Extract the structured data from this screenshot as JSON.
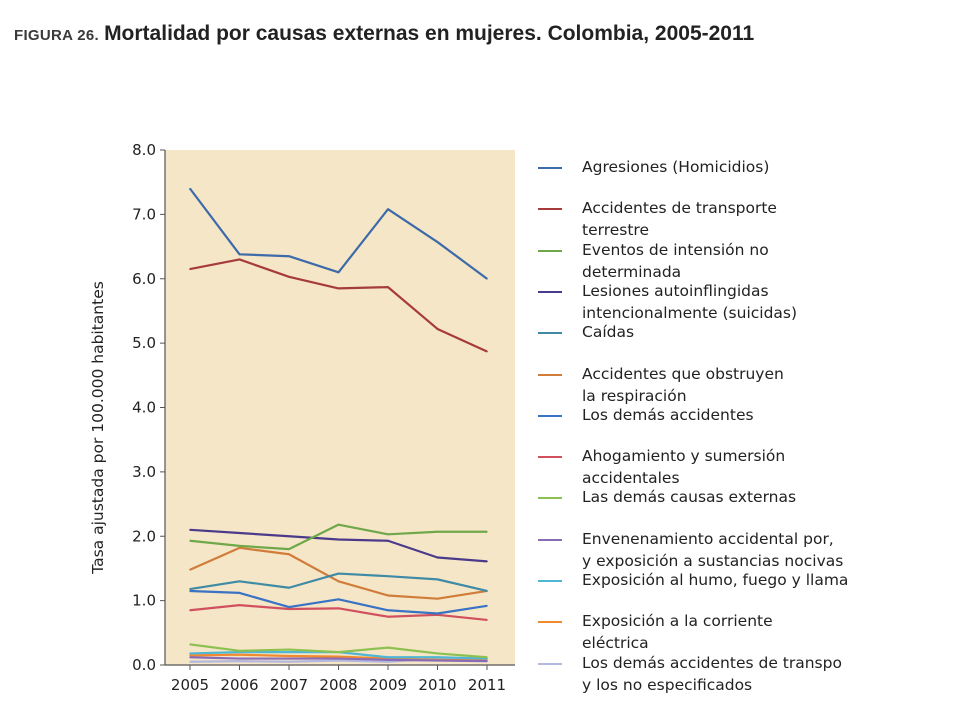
{
  "figure": {
    "label": "FIGURA 26.",
    "title": "Mortalidad por causas externas en mujeres. Colombia, 2005-2011"
  },
  "colors": {
    "plot_background": "#f6e6c8",
    "axis": "#555555"
  },
  "chart_data": {
    "type": "line",
    "title": "Mortalidad por causas externas en mujeres. Colombia, 2005-2011",
    "xlabel": "",
    "ylabel": "Tasa ajustada por 100.000 habitantes",
    "categories": [
      "2005",
      "2006",
      "2007",
      "2008",
      "2009",
      "2010",
      "2011"
    ],
    "ylim": [
      0,
      8
    ],
    "yticks": [
      "0.0",
      "1.0",
      "2.0",
      "3.0",
      "4.0",
      "5.0",
      "6.0",
      "7.0",
      "8.0"
    ],
    "grid": false,
    "legend_position": "right",
    "series": [
      {
        "name": "Agresiones (Homicidios)",
        "color": "#3d6aa8",
        "values": [
          7.4,
          6.38,
          6.35,
          6.1,
          7.08,
          6.57,
          6.0
        ]
      },
      {
        "name": "Accidentes de transporte terrestre",
        "color": "#a63b3b",
        "values": [
          6.15,
          6.3,
          6.03,
          5.85,
          5.87,
          5.22,
          4.87
        ]
      },
      {
        "name": "Eventos de intensión no determinada",
        "color": "#6fa84a",
        "values": [
          1.93,
          1.85,
          1.8,
          2.18,
          2.03,
          2.07,
          2.07
        ]
      },
      {
        "name": "Lesiones autoinflingidas intencionalmente (suicidas)",
        "color": "#4a3a8a",
        "values": [
          2.1,
          2.05,
          2.0,
          1.95,
          1.93,
          1.67,
          1.61
        ]
      },
      {
        "name": "Caídas",
        "color": "#3f8ba5",
        "values": [
          1.18,
          1.3,
          1.2,
          1.42,
          1.38,
          1.33,
          1.15
        ]
      },
      {
        "name": "Accidentes que obstruyen la respiración",
        "color": "#d07c3a",
        "values": [
          1.48,
          1.82,
          1.72,
          1.3,
          1.08,
          1.03,
          1.15
        ]
      },
      {
        "name": "Los demás accidentes",
        "color": "#3a72c4",
        "values": [
          1.15,
          1.12,
          0.9,
          1.02,
          0.85,
          0.8,
          0.92
        ]
      },
      {
        "name": "Ahogamiento y sumersión accidentales",
        "color": "#d0505e",
        "values": [
          0.85,
          0.93,
          0.87,
          0.88,
          0.75,
          0.78,
          0.7
        ]
      },
      {
        "name": "Las demás causas externas",
        "color": "#8cc152",
        "values": [
          0.32,
          0.22,
          0.24,
          0.2,
          0.27,
          0.18,
          0.12
        ]
      },
      {
        "name": "Envenenamiento accidental por, y exposición a sustancias nocivas",
        "color": "#8a6bb5",
        "values": [
          0.12,
          0.1,
          0.1,
          0.1,
          0.08,
          0.07,
          0.06
        ]
      },
      {
        "name": "Exposición al humo, fuego y llama",
        "color": "#4fb6d6",
        "values": [
          0.18,
          0.2,
          0.2,
          0.2,
          0.12,
          0.12,
          0.1
        ]
      },
      {
        "name": "Exposición a la corriente eléctrica",
        "color": "#f08a2c",
        "values": [
          0.15,
          0.16,
          0.14,
          0.13,
          0.1,
          0.08,
          0.07
        ]
      },
      {
        "name": "Los demás accidentes de transpo y los no especificados",
        "color": "#b3b8e0",
        "values": [
          0.05,
          0.06,
          0.05,
          0.07,
          0.05,
          0.1,
          0.08
        ]
      }
    ]
  },
  "legend": [
    {
      "lines": [
        "Agresiones (Homicidios)"
      ]
    },
    {
      "lines": [
        "Accidentes de transporte",
        "terrestre"
      ]
    },
    {
      "lines": [
        "Eventos de intensión no",
        "determinada"
      ]
    },
    {
      "lines": [
        "Lesiones autoinflingidas",
        "intencionalmente (suicidas)"
      ]
    },
    {
      "lines": [
        "Caídas"
      ]
    },
    {
      "lines": [
        "Accidentes que obstruyen",
        "la respiración"
      ]
    },
    {
      "lines": [
        "Los demás accidentes"
      ]
    },
    {
      "lines": [
        "Ahogamiento y sumersión",
        "accidentales"
      ]
    },
    {
      "lines": [
        "Las demás causas externas"
      ]
    },
    {
      "lines": [
        "Envenenamiento accidental por,",
        "y exposición a sustancias nocivas"
      ]
    },
    {
      "lines": [
        "Exposición al humo, fuego y llama"
      ]
    },
    {
      "lines": [
        "Exposición a la corriente",
        "eléctrica"
      ]
    },
    {
      "lines": [
        "Los demás accidentes de transpo",
        "y los no especificados"
      ]
    }
  ]
}
